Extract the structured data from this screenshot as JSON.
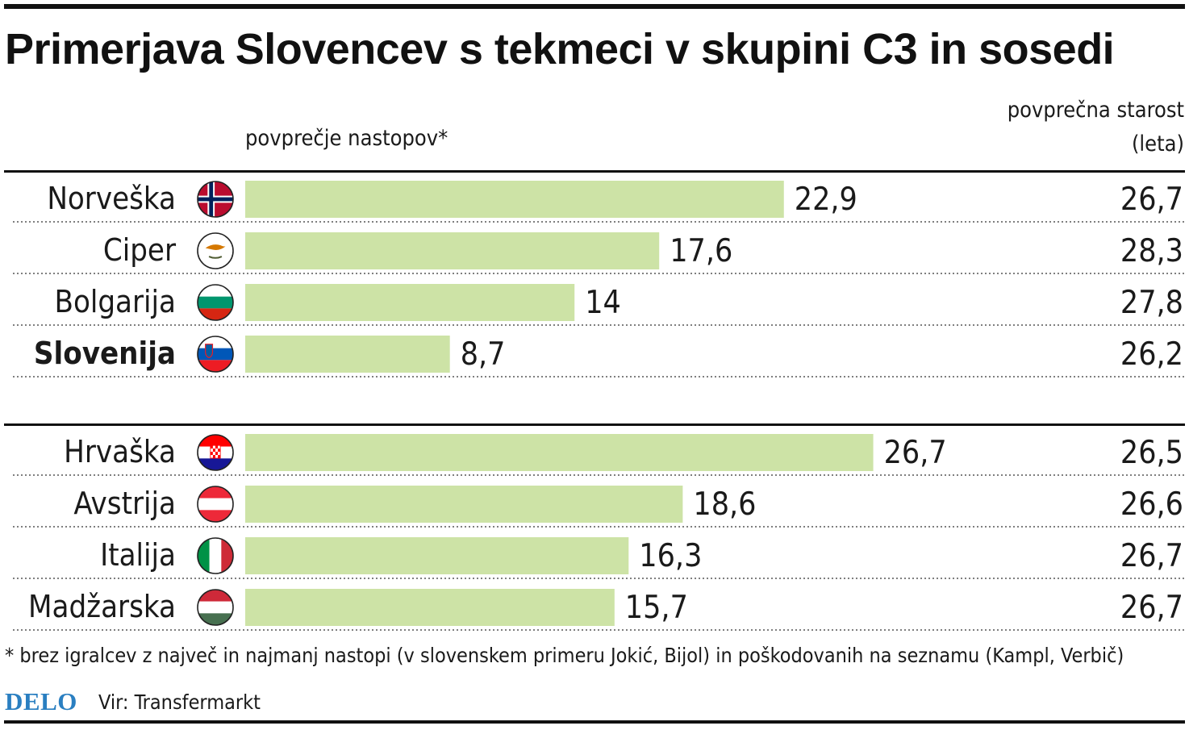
{
  "title": "Primerjava Slovencev s tekmeci v skupini C3 in sosedi",
  "bar_header": "povprečje nastopov*",
  "age_header": [
    "povprečna starost",
    "(leta)"
  ],
  "footnote": "* brez igralcev z največ in najmanj nastopi (v slovenskem primeru Jokić, Bijol) in poškodovanih na seznamu (Kampl, Verbič)",
  "logo": "DELO",
  "source": "Vir: Transfermarkt",
  "colors": {
    "bar": "#cde3a6",
    "logo": "#2a7fc1",
    "text": "#1a1a1a"
  },
  "chart_data": {
    "type": "bar",
    "orientation": "horizontal",
    "value_label": "povprečje nastopov*",
    "secondary_value_label": "povprečna starost (leta)",
    "decimal_separator": ",",
    "groups": [
      {
        "rows": [
          {
            "country": "Norveška",
            "flag": "norway-flag-icon",
            "appearances": 22.9,
            "appearances_label": "22,9",
            "age": 26.7,
            "age_label": "26,7"
          },
          {
            "country": "Ciper",
            "flag": "cyprus-flag-icon",
            "appearances": 17.6,
            "appearances_label": "17,6",
            "age": 28.3,
            "age_label": "28,3"
          },
          {
            "country": "Bolgarija",
            "flag": "bulgaria-flag-icon",
            "appearances": 14,
            "appearances_label": "14",
            "age": 27.8,
            "age_label": "27,8"
          },
          {
            "country": "Slovenija",
            "flag": "slovenia-flag-icon",
            "appearances": 8.7,
            "appearances_label": "8,7",
            "age": 26.2,
            "age_label": "26,2",
            "highlight": true
          }
        ]
      },
      {
        "rows": [
          {
            "country": "Hrvaška",
            "flag": "croatia-flag-icon",
            "appearances": 26.7,
            "appearances_label": "26,7",
            "age": 26.5,
            "age_label": "26,5"
          },
          {
            "country": "Avstrija",
            "flag": "austria-flag-icon",
            "appearances": 18.6,
            "appearances_label": "18,6",
            "age": 26.6,
            "age_label": "26,6"
          },
          {
            "country": "Italija",
            "flag": "italy-flag-icon",
            "appearances": 16.3,
            "appearances_label": "16,3",
            "age": 26.7,
            "age_label": "26,7"
          },
          {
            "country": "Madžarska",
            "flag": "hungary-flag-icon",
            "appearances": 15.7,
            "appearances_label": "15,7",
            "age": 26.7,
            "age_label": "26,7"
          }
        ]
      }
    ]
  }
}
